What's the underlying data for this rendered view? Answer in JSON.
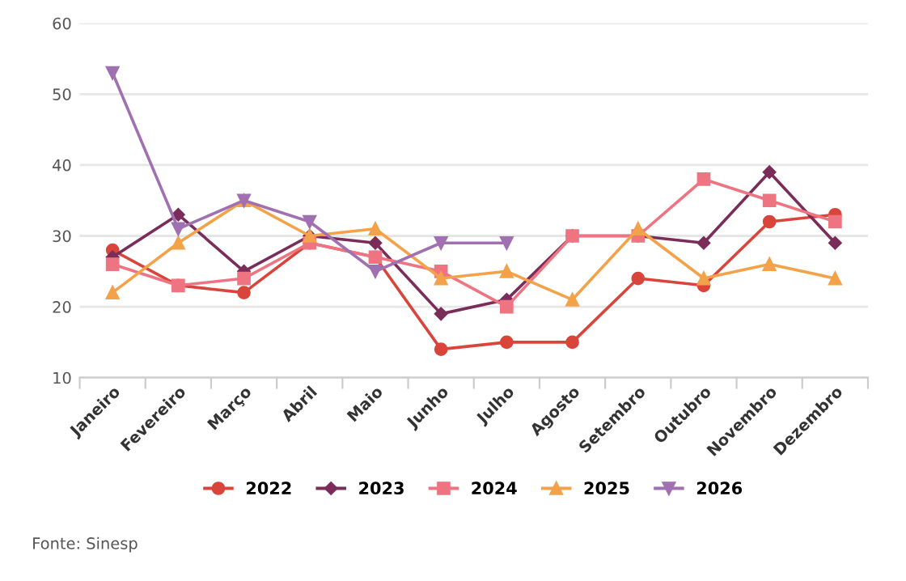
{
  "chart_data": {
    "type": "line",
    "categories": [
      "Janeiro",
      "Fevereiro",
      "Março",
      "Abril",
      "Maio",
      "Junho",
      "Julho",
      "Agosto",
      "Setembro",
      "Outubro",
      "Novembro",
      "Dezembro"
    ],
    "series": [
      {
        "name": "2022",
        "color": "#d9453a",
        "marker": "circle",
        "values": [
          28,
          23,
          22,
          29,
          27,
          14,
          15,
          15,
          24,
          23,
          32,
          33
        ]
      },
      {
        "name": "2023",
        "color": "#7b2d5a",
        "marker": "diamond",
        "values": [
          27,
          33,
          25,
          30,
          29,
          19,
          21,
          30,
          30,
          29,
          39,
          29
        ]
      },
      {
        "name": "2024",
        "color": "#ef7482",
        "marker": "square",
        "values": [
          26,
          23,
          24,
          29,
          27,
          25,
          20,
          30,
          30,
          38,
          35,
          32
        ]
      },
      {
        "name": "2025",
        "color": "#f4a24a",
        "marker": "triangle",
        "values": [
          22,
          29,
          35,
          30,
          31,
          24,
          25,
          21,
          31,
          24,
          26,
          24
        ]
      },
      {
        "name": "2026",
        "color": "#a070b0",
        "marker": "triangle_down",
        "values": [
          53,
          31,
          35,
          32,
          25,
          29,
          29,
          null,
          null,
          null,
          null,
          null
        ]
      }
    ],
    "ylim": [
      10,
      60
    ],
    "yticks": [
      10,
      20,
      30,
      40,
      50,
      60
    ],
    "grid": "y",
    "legend": "bottom",
    "annotations": [
      "Fonte: Sinesp"
    ]
  }
}
